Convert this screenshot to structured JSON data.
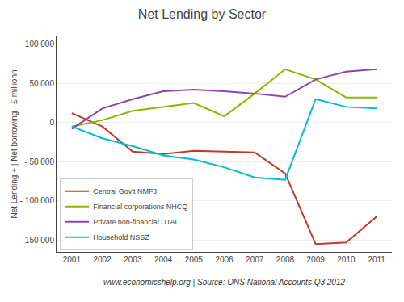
{
  "chart_data": {
    "type": "line",
    "title": "Net Lending by Sector",
    "ylabel": "Net Lending + | Net borrowing - £ millionn",
    "annotations": [
      "www.economicshelp.org | Source: ONS National Accounts Q3 2012"
    ],
    "x": [
      2001,
      2002,
      2003,
      2004,
      2005,
      2006,
      2007,
      2008,
      2009,
      2010,
      2011
    ],
    "series": [
      {
        "name": "Central Gov't NMFJ",
        "color": "#c0392b",
        "values": [
          12000,
          -5000,
          -37000,
          -40000,
          -36000,
          -37000,
          -38000,
          -65000,
          -155000,
          -153000,
          -120000
        ]
      },
      {
        "name": "Financial corporations NHCQ",
        "color": "#8db600",
        "values": [
          -5000,
          3000,
          15000,
          20000,
          25000,
          8000,
          37000,
          68000,
          55000,
          32000,
          32000
        ]
      },
      {
        "name": "Private non-financial DTAL",
        "color": "#8e44ad",
        "values": [
          -8000,
          18000,
          30000,
          40000,
          42000,
          40000,
          37000,
          33000,
          55000,
          65000,
          68000
        ]
      },
      {
        "name": "Household NSSZ",
        "color": "#00bcd4",
        "values": [
          -5000,
          -20000,
          -30000,
          -42000,
          -47000,
          -57000,
          -70000,
          -73000,
          30000,
          20000,
          18000
        ]
      }
    ],
    "xlim": [
      2000.5,
      2011.5
    ],
    "xticks": [
      2001,
      2002,
      2003,
      2004,
      2005,
      2006,
      2007,
      2008,
      2009,
      2010,
      2011
    ],
    "ylim": [
      -165000,
      110000
    ],
    "yticks": [
      {
        "value": -150000,
        "label": "- 150 000"
      },
      {
        "value": -100000,
        "label": "- 100 000"
      },
      {
        "value": -50000,
        "label": "- 50 000"
      },
      0,
      {
        "value": 50000,
        "label": "50 000"
      },
      {
        "value": 100000,
        "label": "100 000"
      }
    ],
    "grid": "y",
    "legend": "lower left"
  }
}
